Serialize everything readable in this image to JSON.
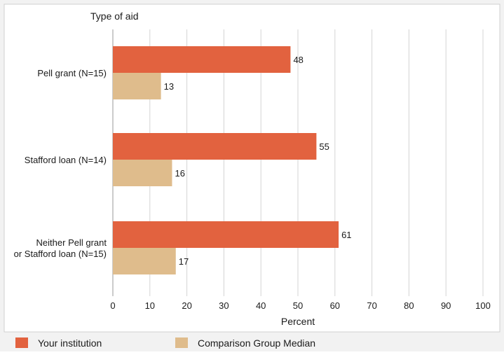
{
  "chart_data": {
    "type": "bar",
    "orientation": "horizontal",
    "title": "Type of aid",
    "xlabel": "Percent",
    "ylabel": "",
    "xlim": [
      0,
      100
    ],
    "xticks": [
      0,
      10,
      20,
      30,
      40,
      50,
      60,
      70,
      80,
      90,
      100
    ],
    "grid": true,
    "legend_placement": "bottom",
    "categories": [
      [
        "Pell grant  (N=15)"
      ],
      [
        "Stafford loan (N=14)"
      ],
      [
        "Neither Pell grant",
        "or Stafford loan (N=15)"
      ]
    ],
    "series": [
      {
        "name": "Your institution",
        "color": "#E2623F",
        "values": [
          48,
          55,
          61
        ]
      },
      {
        "name": "Comparison Group Median",
        "color": "#DFBC8C",
        "values": [
          13,
          16,
          17
        ]
      }
    ]
  }
}
